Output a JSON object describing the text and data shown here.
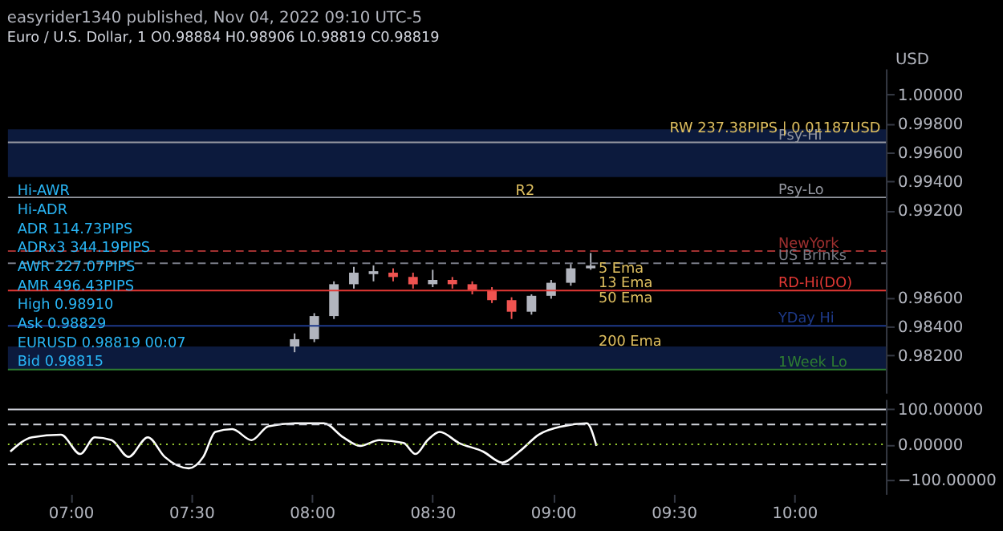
{
  "chart_data": [
    {
      "type": "candlestick",
      "title": "easyrider1340 published, Nov 04, 2022 09:10 UTC-5",
      "subtitle": "Euro / U.S. Dollar, 1   O0.98884 H0.98906 L0.98819 C0.98819",
      "ylabel": "USD",
      "x": [
        7.917,
        8.0,
        8.083,
        8.167,
        8.25,
        8.333,
        8.417,
        8.5,
        8.583,
        8.667,
        8.75,
        8.833,
        8.917,
        9.0,
        9.083,
        9.167
      ],
      "ohlc": [
        [
          0.9826,
          0.9835,
          0.9822,
          0.9831
        ],
        [
          0.9831,
          0.9849,
          0.9829,
          0.9847
        ],
        [
          0.9847,
          0.9871,
          0.9845,
          0.9869
        ],
        [
          0.9869,
          0.9881,
          0.9866,
          0.9877
        ],
        [
          0.9876,
          0.9882,
          0.9871,
          0.9878
        ],
        [
          0.9877,
          0.988,
          0.9871,
          0.9874
        ],
        [
          0.9874,
          0.9877,
          0.9866,
          0.9869
        ],
        [
          0.9869,
          0.9879,
          0.9867,
          0.9872
        ],
        [
          0.9872,
          0.9874,
          0.9866,
          0.9869
        ],
        [
          0.9869,
          0.9871,
          0.9862,
          0.9865
        ],
        [
          0.9865,
          0.9867,
          0.9856,
          0.9858
        ],
        [
          0.9858,
          0.986,
          0.9845,
          0.985
        ],
        [
          0.985,
          0.9862,
          0.9848,
          0.9861
        ],
        [
          0.9861,
          0.9872,
          0.9859,
          0.987
        ],
        [
          0.987,
          0.9883,
          0.9868,
          0.988
        ],
        [
          0.988,
          0.98906,
          0.9879,
          0.98819
        ]
      ],
      "colors": [
        "#b2b5be",
        "#b2b5be",
        "#b2b5be",
        "#b2b5be",
        "#b2b5be",
        "#ef5350",
        "#ef5350",
        "#b2b5be",
        "#ef5350",
        "#ef5350",
        "#ef5350",
        "#ef5350",
        "#b2b5be",
        "#b2b5be",
        "#b2b5be",
        "#b2b5be"
      ],
      "xlim": [
        6.74,
        10.38
      ],
      "ylim": [
        0.9794,
        1.0018
      ],
      "yticks": [
        {
          "value": 1.0,
          "label": "1.00000"
        },
        {
          "value": 0.998,
          "label": "0.99800"
        },
        {
          "value": 0.996,
          "label": "0.99600"
        },
        {
          "value": 0.994,
          "label": "0.99400"
        },
        {
          "value": 0.992,
          "label": "0.99200"
        },
        {
          "value": 0.986,
          "label": "0.98600"
        },
        {
          "value": 0.984,
          "label": "0.98400"
        },
        {
          "value": 0.982,
          "label": "0.98200"
        }
      ],
      "tick_labels": "y",
      "bands": [
        {
          "axis": "y",
          "from": 0.9943,
          "to": 0.9976,
          "color": "#0c1a3d"
        },
        {
          "axis": "y",
          "from": 0.981,
          "to": 0.9826,
          "color": "#0c1a3d"
        }
      ],
      "ref_lines": [
        {
          "axis": "y",
          "value": 0.9967,
          "label": "Psy-Hi",
          "color": "#9598a1",
          "line_style": "solid"
        },
        {
          "axis": "y",
          "value": 0.9929,
          "label": "Psy-Lo",
          "color": "#9598a1",
          "line_style": "solid"
        },
        {
          "axis": "y",
          "value": 0.98919,
          "label": "NewYork",
          "color": "#a03030",
          "line_style": "dashed"
        },
        {
          "axis": "y",
          "value": 0.98835,
          "label": "US Brinks",
          "color": "#787b86",
          "line_style": "dashed"
        },
        {
          "axis": "y",
          "value": 0.98647,
          "label": "RD-Hi(DO)",
          "color": "#e53935",
          "line_style": "solid"
        },
        {
          "axis": "y",
          "value": 0.98403,
          "label": "YDay Hi",
          "color": "#1e3a8a",
          "line_style": "solid"
        },
        {
          "axis": "y",
          "value": 0.981,
          "label": "1Week Lo",
          "color": "#2e7d32",
          "line_style": "solid"
        }
      ],
      "annotations": [
        {
          "text": "RW 237.38PIPS | 0.01187USD",
          "x": 9.5,
          "y": 0.9977
        },
        {
          "text": "R2",
          "x": 8.85,
          "y": 0.9934
        },
        {
          "text": "5 Ema",
          "x": 9.2,
          "y": 0.988
        },
        {
          "text": "13 Ema",
          "x": 9.2,
          "y": 0.987
        },
        {
          "text": "50 Ema",
          "x": 9.2,
          "y": 0.986
        },
        {
          "text": "200 Ema",
          "x": 9.2,
          "y": 0.983
        },
        "Hi-AWR",
        "Hi-ADR",
        "ADR   114.73PIPS",
        "ADRx3   344.19PIPS",
        "AWR   227.07PIPS",
        "AMR   496.43PIPS",
        "High 0.98910",
        "Ask 0.98829",
        "EURUSD 0.98819 00:07",
        "Bid 0.98815"
      ]
    },
    {
      "type": "line",
      "xlim": [
        6.74,
        10.38
      ],
      "ylim": [
        -139,
        127
      ],
      "xticks": [
        {
          "value": 7,
          "label": "07:00"
        },
        {
          "value": 7.5,
          "label": "07:30"
        },
        {
          "value": 8,
          "label": "08:00"
        },
        {
          "value": 8.5,
          "label": "08:30"
        },
        {
          "value": 9,
          "label": "09:00"
        },
        {
          "value": 9.5,
          "label": "09:30"
        },
        {
          "value": 10,
          "label": "10:00"
        }
      ],
      "yticks": [
        {
          "value": 100,
          "label": "100.00000"
        },
        {
          "value": 0,
          "label": "0.00000"
        },
        {
          "value": -100,
          "label": "−100.00000"
        }
      ],
      "ref_lines": [
        {
          "axis": "y",
          "value": 98,
          "color": "#d1d4dc",
          "line_style": "solid"
        },
        {
          "axis": "y",
          "value": 56,
          "color": "#d1d4dc",
          "line_style": "dashed"
        },
        {
          "axis": "y",
          "value": 0,
          "color": "#9acd32",
          "line_style": "dotted"
        },
        {
          "axis": "y",
          "value": -56,
          "color": "#d1d4dc",
          "line_style": "dashed"
        }
      ],
      "series": [
        {
          "color": "#ffffff",
          "x": [
            6.75,
            6.84,
            6.96,
            7.04,
            7.1,
            7.17,
            7.24,
            7.32,
            7.39,
            7.49,
            7.55,
            7.6,
            7.67,
            7.75,
            7.82,
            7.93,
            8.05,
            8.13,
            8.2,
            8.28,
            8.38,
            8.43,
            8.48,
            8.53,
            8.61,
            8.71,
            8.79,
            8.86,
            8.94,
            9.04,
            9.14,
            9.18
          ],
          "values": [
            -20,
            20,
            27,
            -27,
            20,
            12,
            -35,
            20,
            -35,
            -67,
            -35,
            35,
            43,
            12,
            51,
            59,
            59,
            20,
            -4,
            12,
            4,
            -27,
            12,
            35,
            4,
            -20,
            -51,
            -20,
            27,
            51,
            59,
            -4
          ]
        }
      ]
    }
  ]
}
